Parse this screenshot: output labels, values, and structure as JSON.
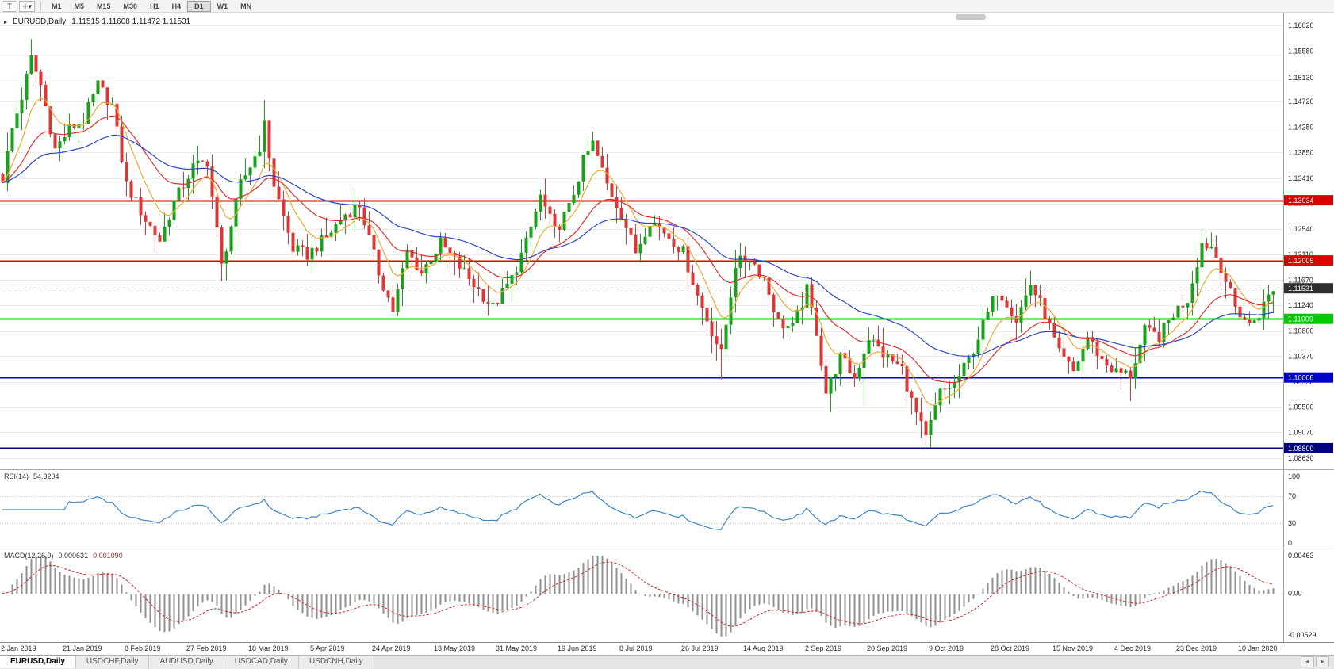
{
  "toolbar": {
    "buttons": [
      {
        "name": "text-tool",
        "glyph": "T"
      },
      {
        "name": "crosshair-tool",
        "glyph": "✛",
        "caret": "▾"
      }
    ],
    "timeframes": [
      "M1",
      "M5",
      "M15",
      "M30",
      "H1",
      "H4",
      "D1",
      "W1",
      "MN"
    ],
    "active_timeframe": "D1"
  },
  "header": {
    "collapse_glyph": "▸",
    "symbol": "EURUSD,Daily",
    "ohlc": "1.11515 1.11608 1.11472 1.11531"
  },
  "price_axis_labels": [
    "1.16020",
    "1.15580",
    "1.15130",
    "1.14720",
    "1.14280",
    "1.13850",
    "1.13410",
    "1.12980",
    "1.12540",
    "1.12110",
    "1.11670",
    "1.11240",
    "1.10800",
    "1.10370",
    "1.09930",
    "1.09500",
    "1.09070",
    "1.08630"
  ],
  "date_labels": [
    "2 Jan 2019",
    "21 Jan 2019",
    "8 Feb 2019",
    "27 Feb 2019",
    "18 Mar 2019",
    "5 Apr 2019",
    "24 Apr 2019",
    "13 May 2019",
    "31 May 2019",
    "19 Jun 2019",
    "8 Jul 2019",
    "26 Jul 2019",
    "14 Aug 2019",
    "2 Sep 2019",
    "20 Sep 2019",
    "9 Oct 2019",
    "28 Oct 2019",
    "15 Nov 2019",
    "4 Dec 2019",
    "23 Dec 2019",
    "10 Jan 2020"
  ],
  "rsi_panel": {
    "name": "RSI(14)",
    "value": "54.3204",
    "period": 14,
    "axis_labels": [
      "100",
      "70",
      "30",
      "0"
    ],
    "level_lines": [
      70,
      30
    ],
    "line_color": "#3d85c8"
  },
  "macd_panel": {
    "name": "MACD(12,26,9)",
    "value_main": "0.000631",
    "value_signal": "0.001090",
    "fast": 12,
    "slow": 26,
    "signal": 9,
    "axis_labels": [
      "0.00463",
      "0.00",
      "-0.00529"
    ],
    "axis_max": 0.00463,
    "axis_min": -0.00529,
    "hist_color": "#8f8f8f",
    "signal_color": "#cc2222"
  },
  "tabs": [
    {
      "label": "EURUSD,Daily",
      "active": true
    },
    {
      "label": "USDCHF,Daily",
      "active": false
    },
    {
      "label": "AUDUSD,Daily",
      "active": false
    },
    {
      "label": "USDCAD,Daily",
      "active": false
    },
    {
      "label": "USDCNH,Daily",
      "active": false
    }
  ],
  "tab_scroll": {
    "left": "◄",
    "right": "►"
  },
  "chart_data": {
    "type": "candlestick",
    "symbol": "EURUSD",
    "timeframe": "Daily",
    "price_max": 1.1602,
    "price_min": 1.0863,
    "bar_count": 268,
    "bars_per_x_label": 13,
    "up_color": "#17a317",
    "down_color": "#e13434",
    "noise_amp": 0.0011,
    "wick_amp": 0.0032,
    "close_anchors": [
      [
        0,
        1.134
      ],
      [
        2,
        1.1425
      ],
      [
        4,
        1.148
      ],
      [
        6,
        1.1545
      ],
      [
        8,
        1.15
      ],
      [
        11,
        1.139
      ],
      [
        14,
        1.1425
      ],
      [
        17,
        1.144
      ],
      [
        20,
        1.15
      ],
      [
        23,
        1.1465
      ],
      [
        26,
        1.133
      ],
      [
        30,
        1.127
      ],
      [
        33,
        1.1235
      ],
      [
        36,
        1.13
      ],
      [
        40,
        1.136
      ],
      [
        43,
        1.137
      ],
      [
        46,
        1.119
      ],
      [
        50,
        1.133
      ],
      [
        54,
        1.1395
      ],
      [
        55,
        1.143
      ],
      [
        57,
        1.133
      ],
      [
        61,
        1.122
      ],
      [
        64,
        1.121
      ],
      [
        68,
        1.124
      ],
      [
        72,
        1.128
      ],
      [
        75,
        1.1295
      ],
      [
        79,
        1.118
      ],
      [
        82,
        1.1115
      ],
      [
        85,
        1.1215
      ],
      [
        88,
        1.118
      ],
      [
        92,
        1.123
      ],
      [
        96,
        1.119
      ],
      [
        100,
        1.115
      ],
      [
        103,
        1.112
      ],
      [
        107,
        1.117
      ],
      [
        110,
        1.123
      ],
      [
        113,
        1.131
      ],
      [
        116,
        1.125
      ],
      [
        119,
        1.129
      ],
      [
        122,
        1.137
      ],
      [
        124,
        1.14
      ],
      [
        127,
        1.133
      ],
      [
        130,
        1.128
      ],
      [
        133,
        1.1215
      ],
      [
        136,
        1.127
      ],
      [
        139,
        1.125
      ],
      [
        143,
        1.1215
      ],
      [
        146,
        1.114
      ],
      [
        149,
        1.108
      ],
      [
        151,
        1.104
      ],
      [
        154,
        1.1195
      ],
      [
        157,
        1.1205
      ],
      [
        160,
        1.117
      ],
      [
        163,
        1.1095
      ],
      [
        166,
        1.1085
      ],
      [
        169,
        1.115
      ],
      [
        171,
        1.108
      ],
      [
        173,
        1.0975
      ],
      [
        176,
        1.1035
      ],
      [
        179,
        1.1
      ],
      [
        182,
        1.107
      ],
      [
        185,
        1.104
      ],
      [
        189,
        1.1015
      ],
      [
        191,
        1.096
      ],
      [
        194,
        1.0895
      ],
      [
        197,
        1.0975
      ],
      [
        200,
        1.099
      ],
      [
        203,
        1.103
      ],
      [
        206,
        1.109
      ],
      [
        209,
        1.115
      ],
      [
        211,
        1.113
      ],
      [
        213,
        1.11
      ],
      [
        216,
        1.116
      ],
      [
        219,
        1.111
      ],
      [
        222,
        1.104
      ],
      [
        225,
        1.101
      ],
      [
        228,
        1.107
      ],
      [
        231,
        1.103
      ],
      [
        234,
        1.101
      ],
      [
        237,
        1.1005
      ],
      [
        240,
        1.108
      ],
      [
        243,
        1.107
      ],
      [
        246,
        1.111
      ],
      [
        249,
        1.1135
      ],
      [
        252,
        1.123
      ],
      [
        254,
        1.1225
      ],
      [
        256,
        1.119
      ],
      [
        259,
        1.112
      ],
      [
        262,
        1.109
      ],
      [
        264,
        1.111
      ],
      [
        266,
        1.114
      ],
      [
        267,
        1.1153
      ]
    ],
    "wick_events": [
      {
        "bar": 6,
        "dir": 1,
        "size": 0.0025
      },
      {
        "bar": 46,
        "dir": -1,
        "size": 0.0028
      },
      {
        "bar": 55,
        "dir": 1,
        "size": 0.003
      },
      {
        "bar": 124,
        "dir": 1,
        "size": 0.0015
      },
      {
        "bar": 151,
        "dir": -1,
        "size": 0.002
      },
      {
        "bar": 181,
        "dir": -1,
        "size": 0.0045
      },
      {
        "bar": 194,
        "dir": -1,
        "size": 0.0015
      },
      {
        "bar": 237,
        "dir": -1,
        "size": 0.0025
      }
    ],
    "moving_averages": [
      {
        "period": 8,
        "color": "#efa834"
      },
      {
        "period": 21,
        "color": "#e03030"
      },
      {
        "period": 45,
        "color": "#2d49c4"
      }
    ],
    "horizontal_lines": [
      {
        "price": 1.13034,
        "label": "1.13034",
        "color": "#dd0000"
      },
      {
        "price": 1.12005,
        "label": "1.12005",
        "color": "#dd0000"
      },
      {
        "price": 1.11009,
        "label": "1.11009",
        "color": "#00cc00"
      },
      {
        "price": 1.10008,
        "label": "1.10008",
        "color": "#0000cc"
      },
      {
        "price": 1.088,
        "label": "1.08800",
        "color": "#000080"
      }
    ],
    "current_price": {
      "value": 1.11531,
      "label": "1.11531",
      "tag_color": "#2f2f2f"
    }
  }
}
